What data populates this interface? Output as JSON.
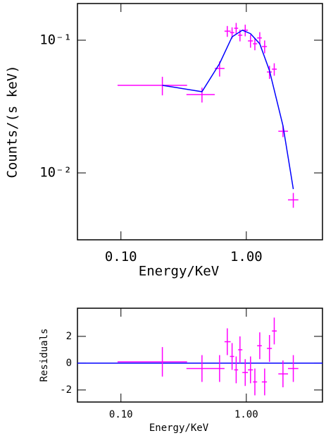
{
  "chart_data": [
    {
      "type": "scatter",
      "xlabel": "Energy/KeV",
      "ylabel": "Counts/(s keV)",
      "log_x": true,
      "log_y": true,
      "xlim": [
        0.045,
        4.05
      ],
      "ylim": [
        0.00313,
        0.189
      ],
      "xticks": [
        {
          "value": 0.1,
          "label": "0.10"
        },
        {
          "value": 1,
          "label": "1.00"
        }
      ],
      "yticks": [
        {
          "value": 0.01,
          "label": "10⁻²"
        },
        {
          "value": 0.1,
          "label": "10⁻¹"
        }
      ],
      "series": [
        {
          "type": "errorbar",
          "color": "#ff00ff",
          "x": [
            0.214,
            0.443,
            0.612,
            0.705,
            0.77,
            0.83,
            0.89,
            0.98,
            1.08,
            1.17,
            1.28,
            1.4,
            1.53,
            1.67,
            1.96,
            2.37
          ],
          "x_low": [
            0.094,
            0.333,
            0.56,
            0.67,
            0.74,
            0.8,
            0.86,
            0.93,
            1.03,
            1.13,
            1.22,
            1.33,
            1.46,
            1.6,
            1.8,
            2.15
          ],
          "x_high": [
            0.337,
            0.56,
            0.67,
            0.75,
            0.8,
            0.86,
            0.93,
            1.03,
            1.13,
            1.22,
            1.33,
            1.46,
            1.6,
            1.75,
            2.15,
            2.6
          ],
          "values": [
            0.0457,
            0.0389,
            0.0612,
            0.117,
            0.114,
            0.123,
            0.109,
            0.119,
            0.0988,
            0.094,
            0.104,
            0.0896,
            0.0576,
            0.0605,
            0.0206,
            0.00626
          ],
          "errors": [
            0.0073,
            0.005,
            0.008,
            0.011,
            0.011,
            0.012,
            0.011,
            0.012,
            0.011,
            0.01,
            0.011,
            0.01,
            0.0065,
            0.0065,
            0.002,
            0.0008
          ]
        },
        {
          "type": "line",
          "color": "#0000ff",
          "x": [
            0.214,
            0.443,
            0.612,
            0.77,
            0.93,
            1.08,
            1.28,
            1.53,
            1.96,
            2.37
          ],
          "values": [
            0.0457,
            0.0409,
            0.0667,
            0.106,
            0.119,
            0.112,
            0.094,
            0.059,
            0.0227,
            0.00755
          ]
        }
      ]
    },
    {
      "type": "scatter",
      "xlabel": "Energy/KeV",
      "ylabel": "Residuals",
      "log_x": true,
      "log_y": false,
      "xlim": [
        0.045,
        4.05
      ],
      "ylim": [
        -2.9,
        4.1
      ],
      "xticks": [
        {
          "value": 0.1,
          "label": "0.10"
        },
        {
          "value": 1,
          "label": "1.00"
        }
      ],
      "yticks": [
        -2,
        0,
        2
      ],
      "hline": 0,
      "hline_color": "#0000ff",
      "series": [
        {
          "type": "errorbar",
          "color": "#ff00ff",
          "x": [
            0.214,
            0.443,
            0.612,
            0.705,
            0.77,
            0.83,
            0.89,
            0.98,
            1.08,
            1.17,
            1.28,
            1.4,
            1.53,
            1.67,
            1.96,
            2.37
          ],
          "x_low": [
            0.094,
            0.333,
            0.56,
            0.67,
            0.74,
            0.8,
            0.86,
            0.93,
            1.03,
            1.13,
            1.22,
            1.33,
            1.46,
            1.6,
            1.8,
            2.15
          ],
          "x_high": [
            0.337,
            0.56,
            0.67,
            0.75,
            0.8,
            0.86,
            0.93,
            1.03,
            1.13,
            1.22,
            1.33,
            1.46,
            1.6,
            1.75,
            2.15,
            2.6
          ],
          "values": [
            0.1,
            -0.4,
            -0.4,
            1.6,
            0.5,
            -0.5,
            1.0,
            -0.7,
            -0.5,
            -1.4,
            1.3,
            -1.4,
            1.1,
            2.4,
            -0.8,
            -0.4
          ],
          "errors": [
            1.1,
            1,
            1,
            1,
            1,
            1,
            1,
            1,
            1,
            1,
            1,
            1,
            1,
            1,
            1,
            1
          ]
        }
      ]
    }
  ]
}
